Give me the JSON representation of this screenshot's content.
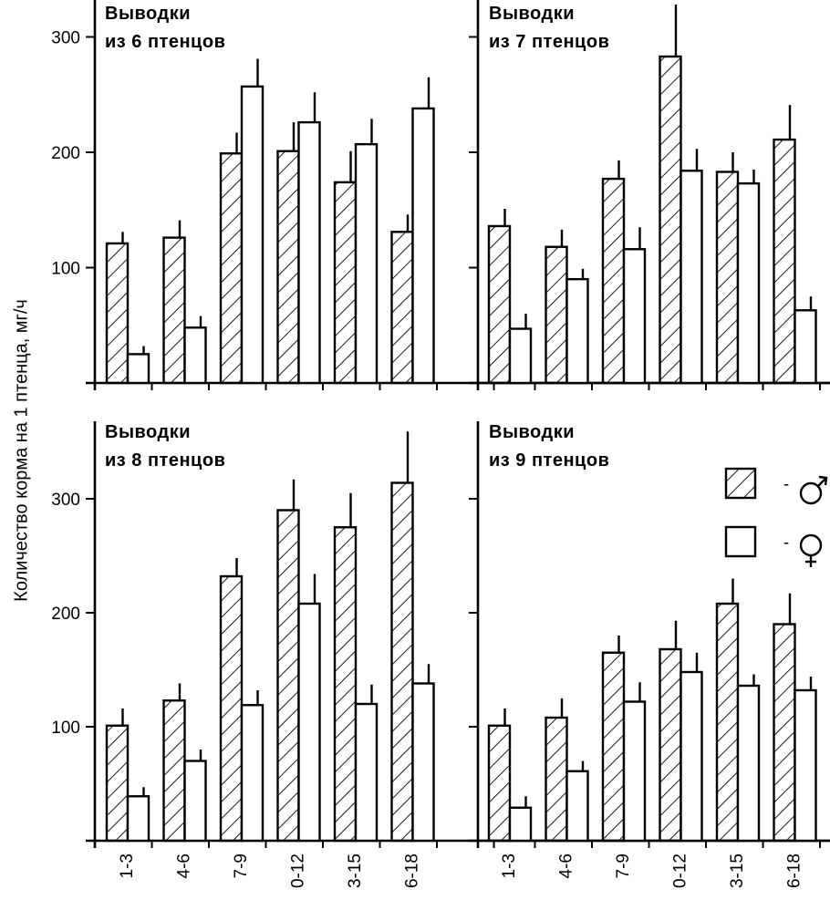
{
  "chart_data": {
    "type": "bar",
    "ylabel": "Количество корма на 1 птенца, мг/ч",
    "categories": [
      "1-3",
      "4-6",
      "7-9",
      "0-12",
      "3-15",
      "6-18"
    ],
    "ylim": [
      0,
      360
    ],
    "yticks": [
      100,
      200,
      300
    ],
    "legend": {
      "position": "right",
      "entries": [
        {
          "label": "-",
          "symbol": "male",
          "style": "hatched"
        },
        {
          "label": "-",
          "symbol": "female",
          "style": "open"
        }
      ]
    },
    "panels": [
      {
        "title_line1": "Выводки",
        "title_line2": "из 6 птенцов",
        "series": [
          {
            "name": "male",
            "values": [
              121,
              126,
              199,
              201,
              174,
              131
            ],
            "errors": [
              10,
              15,
              18,
              25,
              27,
              15
            ]
          },
          {
            "name": "female",
            "values": [
              25,
              48,
              257,
              226,
              207,
              238
            ],
            "errors": [
              7,
              10,
              24,
              26,
              22,
              27
            ]
          }
        ]
      },
      {
        "title_line1": "Выводки",
        "title_line2": "из 7 птенцов",
        "series": [
          {
            "name": "male",
            "values": [
              136,
              118,
              177,
              283,
              183,
              211
            ],
            "errors": [
              15,
              15,
              16,
              45,
              17,
              30
            ]
          },
          {
            "name": "female",
            "values": [
              47,
              90,
              116,
              184,
              173,
              63
            ],
            "errors": [
              13,
              9,
              19,
              19,
              12,
              12
            ]
          }
        ]
      },
      {
        "title_line1": "Выводки",
        "title_line2": "из 8 птенцов",
        "series": [
          {
            "name": "male",
            "values": [
              101,
              123,
              232,
              290,
              275,
              314
            ],
            "errors": [
              15,
              15,
              16,
              27,
              30,
              45
            ]
          },
          {
            "name": "female",
            "values": [
              39,
              70,
              119,
              208,
              120,
              138
            ],
            "errors": [
              8,
              10,
              13,
              26,
              17,
              17
            ]
          }
        ]
      },
      {
        "title_line1": "Выводки",
        "title_line2": "из 9 птенцов",
        "series": [
          {
            "name": "male",
            "values": [
              101,
              108,
              165,
              168,
              208,
              190
            ],
            "errors": [
              15,
              17,
              15,
              25,
              22,
              27
            ]
          },
          {
            "name": "female",
            "values": [
              29,
              61,
              122,
              148,
              136,
              132
            ],
            "errors": [
              10,
              9,
              17,
              17,
              10,
              12
            ]
          }
        ]
      }
    ]
  }
}
